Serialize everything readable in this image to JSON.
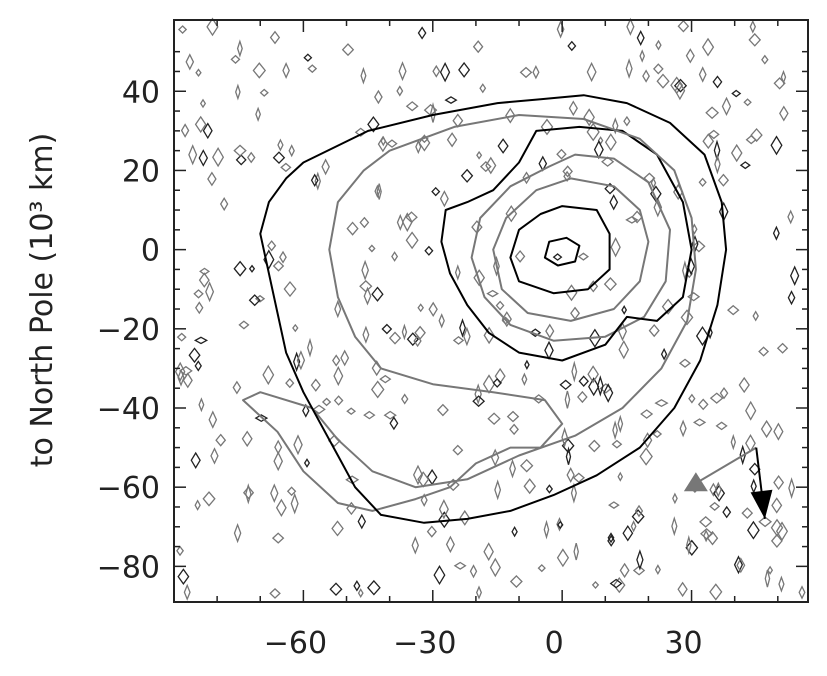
{
  "chart_data": {
    "type": "contour",
    "ylabel": "to North Pole (10³ km)",
    "xlabel": "",
    "xlim": [
      -90,
      57
    ],
    "ylim": [
      -89,
      58
    ],
    "x_ticks": [
      -60,
      -30,
      0,
      30
    ],
    "x_tick_labels": [
      "−60",
      "−30",
      "0",
      "30"
    ],
    "y_ticks": [
      -80,
      -60,
      -40,
      -20,
      0,
      20,
      40
    ],
    "y_tick_labels": [
      "−80",
      "−60",
      "−40",
      "−20",
      "0",
      "20",
      "40"
    ],
    "grid": false,
    "contours": [
      {
        "name": "",
        "color": "#000000",
        "points": [
          [
            1,
            3
          ],
          [
            4,
            1
          ],
          [
            3,
            -3
          ],
          [
            -1,
            -4
          ],
          [
            -4,
            -2
          ],
          [
            -3,
            2
          ],
          [
            1,
            3
          ]
        ]
      },
      {
        "name": "",
        "color": "#000000",
        "points": [
          [
            0,
            11
          ],
          [
            8,
            10
          ],
          [
            11,
            4
          ],
          [
            11,
            -5
          ],
          [
            6,
            -10
          ],
          [
            -2,
            -11
          ],
          [
            -10,
            -8
          ],
          [
            -12,
            -2
          ],
          [
            -10,
            5
          ],
          [
            -5,
            9
          ],
          [
            0,
            11
          ]
        ]
      },
      {
        "name": "",
        "color": "#777777",
        "points": [
          [
            2,
            18
          ],
          [
            12,
            16
          ],
          [
            18,
            10
          ],
          [
            20,
            2
          ],
          [
            18,
            -8
          ],
          [
            12,
            -15
          ],
          [
            2,
            -18
          ],
          [
            -8,
            -16
          ],
          [
            -14,
            -10
          ],
          [
            -16,
            0
          ],
          [
            -13,
            8
          ],
          [
            -6,
            15
          ],
          [
            2,
            18
          ]
        ]
      },
      {
        "name": "",
        "color": "#777777",
        "points": [
          [
            3,
            24
          ],
          [
            12,
            23
          ],
          [
            20,
            17
          ],
          [
            25,
            5
          ],
          [
            24,
            -8
          ],
          [
            19,
            -17
          ],
          [
            10,
            -22
          ],
          [
            -2,
            -23
          ],
          [
            -12,
            -19
          ],
          [
            -18,
            -12
          ],
          [
            -21,
            -2
          ],
          [
            -19,
            8
          ],
          [
            -12,
            16
          ],
          [
            -3,
            21
          ],
          [
            3,
            24
          ]
        ]
      },
      {
        "name": "",
        "color": "#000000",
        "points": [
          [
            -6,
            30
          ],
          [
            4,
            31
          ],
          [
            14,
            30
          ],
          [
            22,
            24
          ],
          [
            28,
            12
          ],
          [
            30,
            0
          ],
          [
            28,
            -12
          ],
          [
            22,
            -18
          ],
          [
            15,
            -17
          ],
          [
            10,
            -24
          ],
          [
            0,
            -28
          ],
          [
            -10,
            -26
          ],
          [
            -17,
            -21
          ],
          [
            -22,
            -14
          ],
          [
            -26,
            -6
          ],
          [
            -28,
            2
          ],
          [
            -27,
            10
          ],
          [
            -22,
            12
          ],
          [
            -16,
            15
          ],
          [
            -10,
            22
          ],
          [
            -6,
            30
          ]
        ]
      },
      {
        "name": "",
        "color": "#777777",
        "points": [
          [
            -40,
            25
          ],
          [
            -25,
            31
          ],
          [
            -10,
            34
          ],
          [
            5,
            33
          ],
          [
            18,
            28
          ],
          [
            26,
            20
          ],
          [
            30,
            8
          ],
          [
            31,
            -5
          ],
          [
            29,
            -18
          ],
          [
            23,
            -30
          ],
          [
            14,
            -40
          ],
          [
            3,
            -47
          ],
          [
            -10,
            -52
          ],
          [
            -22,
            -58
          ],
          [
            -34,
            -60
          ],
          [
            -44,
            -56
          ],
          [
            -52,
            -48
          ],
          [
            -58,
            -40
          ],
          [
            -70,
            -36
          ],
          [
            -74,
            -38
          ],
          [
            -66,
            -46
          ],
          [
            -60,
            -56
          ],
          [
            -52,
            -64
          ],
          [
            -44,
            -66
          ],
          [
            -34,
            -63
          ],
          [
            -26,
            -60
          ],
          [
            -20,
            -54
          ],
          [
            -12,
            -50
          ],
          [
            -5,
            -50
          ],
          [
            0,
            -44
          ],
          [
            -4,
            -38
          ],
          [
            -16,
            -36
          ],
          [
            -30,
            -34
          ],
          [
            -42,
            -30
          ],
          [
            -48,
            -22
          ],
          [
            -52,
            -12
          ],
          [
            -54,
            0
          ],
          [
            -52,
            12
          ],
          [
            -46,
            20
          ],
          [
            -40,
            25
          ]
        ]
      },
      {
        "name": "",
        "color": "#000000",
        "points": [
          [
            -60,
            22
          ],
          [
            -45,
            30
          ],
          [
            -30,
            34
          ],
          [
            -15,
            37
          ],
          [
            -5,
            38
          ],
          [
            5,
            39
          ],
          [
            15,
            37
          ],
          [
            25,
            32
          ],
          [
            33,
            24
          ],
          [
            37,
            12
          ],
          [
            38,
            0
          ],
          [
            36,
            -14
          ],
          [
            32,
            -28
          ],
          [
            26,
            -40
          ],
          [
            18,
            -50
          ],
          [
            8,
            -57
          ],
          [
            -2,
            -62
          ],
          [
            -12,
            -66
          ],
          [
            -22,
            -68
          ],
          [
            -32,
            -69
          ],
          [
            -42,
            -67
          ],
          [
            -48,
            -60
          ],
          [
            -52,
            -52
          ],
          [
            -56,
            -44
          ],
          [
            -60,
            -36
          ],
          [
            -64,
            -26
          ],
          [
            -66,
            -16
          ],
          [
            -68,
            -6
          ],
          [
            -70,
            4
          ],
          [
            -68,
            12
          ],
          [
            -64,
            18
          ],
          [
            -60,
            22
          ]
        ]
      }
    ],
    "arrows": [
      {
        "name": "",
        "color": "#777777",
        "marker": "triangle",
        "from": [
          31,
          -59
        ],
        "to": [
          45,
          -50
        ]
      },
      {
        "name": "",
        "color": "#000000",
        "marker": "arrowhead",
        "from": [
          45,
          -50
        ],
        "to": [
          47,
          -68
        ]
      }
    ]
  }
}
